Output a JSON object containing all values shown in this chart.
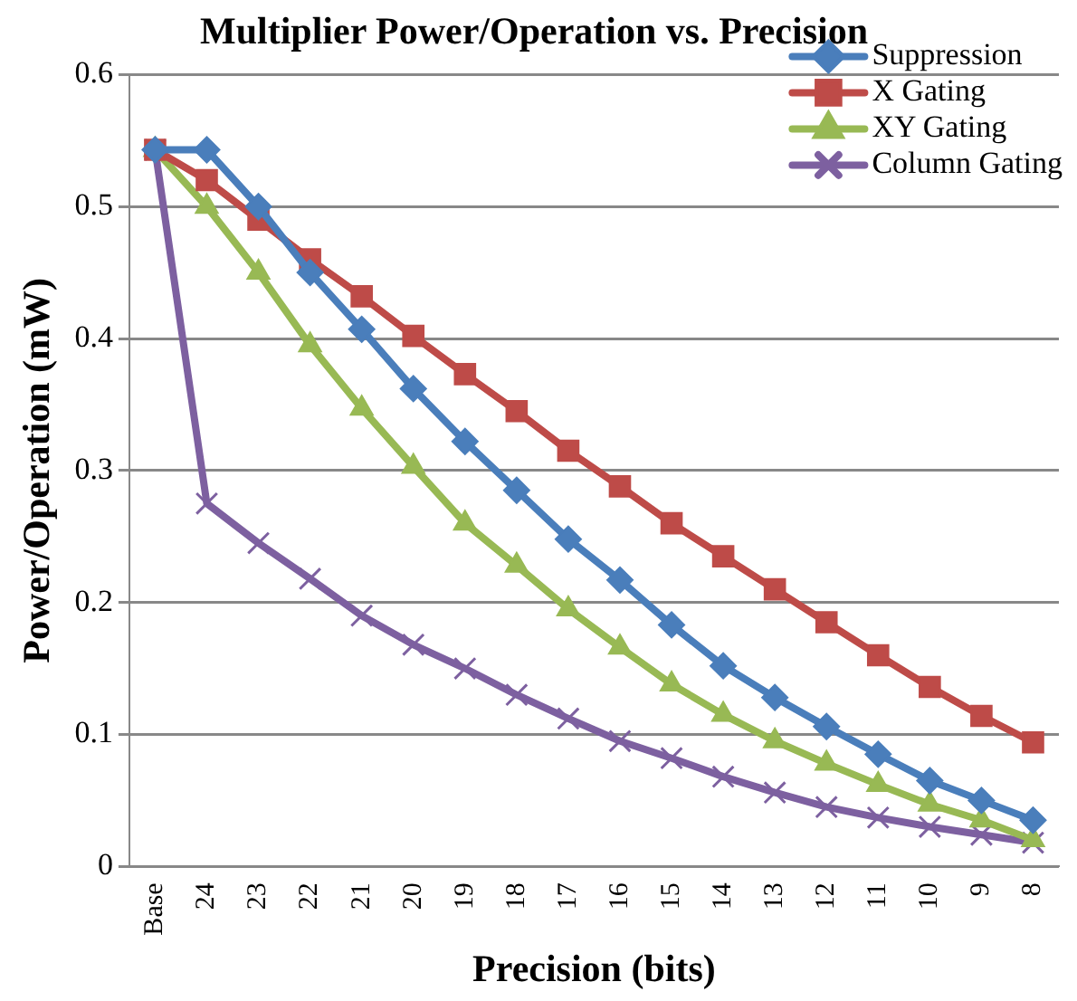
{
  "chart_data": {
    "type": "line",
    "title": "Multiplier Power/Operation vs. Precision",
    "xlabel": "Precision (bits)",
    "ylabel": "Power/Operation (mW)",
    "categories": [
      "Base",
      "24",
      "23",
      "22",
      "21",
      "20",
      "19",
      "18",
      "17",
      "16",
      "15",
      "14",
      "13",
      "12",
      "11",
      "10",
      "9",
      "8"
    ],
    "series": [
      {
        "name": "Suppression",
        "color": "#4a7ebb",
        "marker": "diamond",
        "values": [
          0.543,
          0.543,
          0.5,
          0.45,
          0.407,
          0.362,
          0.322,
          0.285,
          0.248,
          0.217,
          0.183,
          0.152,
          0.128,
          0.106,
          0.085,
          0.065,
          0.05,
          0.035
        ]
      },
      {
        "name": "X Gating",
        "color": "#be4b48",
        "marker": "square",
        "values": [
          0.543,
          0.52,
          0.49,
          0.46,
          0.432,
          0.402,
          0.373,
          0.345,
          0.315,
          0.288,
          0.26,
          0.235,
          0.21,
          0.185,
          0.16,
          0.136,
          0.114,
          0.094
        ]
      },
      {
        "name": "XY Gating",
        "color": "#98b954",
        "marker": "triangle",
        "values": [
          0.543,
          0.5,
          0.45,
          0.395,
          0.347,
          0.303,
          0.26,
          0.228,
          0.195,
          0.166,
          0.138,
          0.115,
          0.095,
          0.078,
          0.062,
          0.047,
          0.035,
          0.02
        ]
      },
      {
        "name": "Column Gating",
        "color": "#7d60a0",
        "marker": "cross",
        "values": [
          0.543,
          0.275,
          0.245,
          0.218,
          0.19,
          0.168,
          0.15,
          0.13,
          0.112,
          0.095,
          0.082,
          0.068,
          0.056,
          0.045,
          0.037,
          0.03,
          0.024,
          0.018
        ]
      }
    ],
    "ylim": [
      0,
      0.6
    ],
    "yticks": [
      0,
      0.1,
      0.2,
      0.3,
      0.4,
      0.5,
      0.6
    ],
    "grid": "y",
    "legend": "top right",
    "line_style": "solid"
  }
}
